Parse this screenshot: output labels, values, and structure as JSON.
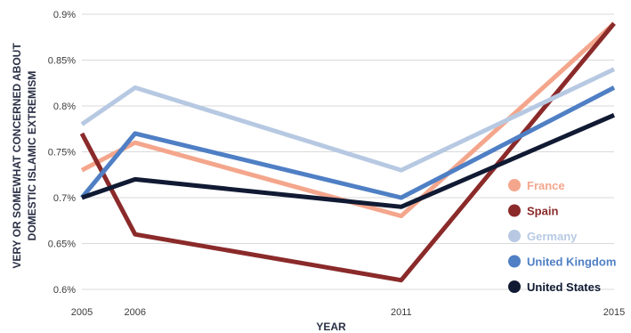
{
  "chart_data": {
    "type": "line",
    "x": [
      "2005",
      "2006",
      "2011",
      "2015"
    ],
    "xlabel": "YEAR",
    "ylabel": [
      "VERY OR SOMEWHAT CONCERNED ABOUT",
      "DOMESTIC ISLAMIC EXTREMISM"
    ],
    "ylim": [
      0.6,
      0.9
    ],
    "yticks": [
      "0.6%",
      "0.65%",
      "0.7%",
      "0.75%",
      "0.8%",
      "0.85%",
      "0.9%"
    ],
    "grid": "horizontal",
    "legend_position": "right",
    "series": [
      {
        "name": "France",
        "color": "#f4a68c",
        "values": [
          0.73,
          0.76,
          0.68,
          0.89
        ]
      },
      {
        "name": "Spain",
        "color": "#8b2a2a",
        "values": [
          0.77,
          0.66,
          0.61,
          0.89
        ]
      },
      {
        "name": "Germany",
        "color": "#b7c9e2",
        "values": [
          0.78,
          0.82,
          0.73,
          0.84
        ]
      },
      {
        "name": "United Kingdom",
        "color": "#4f7fc4",
        "values": [
          0.7,
          0.77,
          0.7,
          0.82
        ]
      },
      {
        "name": "United States",
        "color": "#111a33",
        "values": [
          0.7,
          0.72,
          0.69,
          0.79
        ]
      }
    ]
  }
}
